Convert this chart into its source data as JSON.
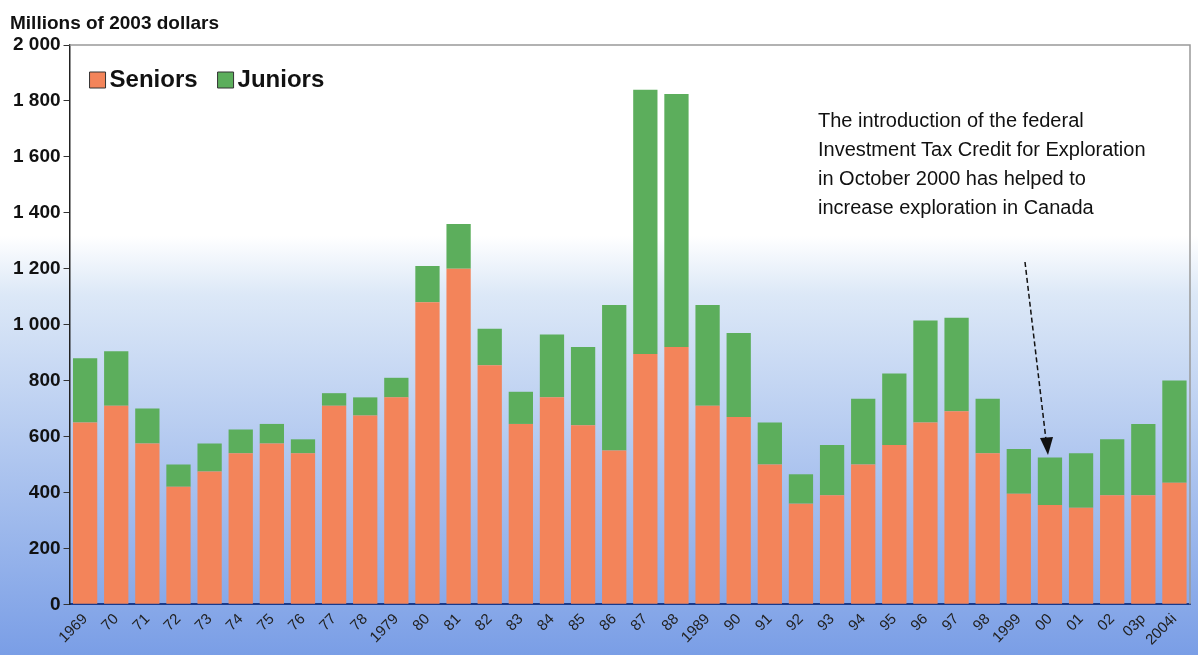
{
  "chart_data": {
    "type": "bar",
    "stacked": true,
    "ylabel": "Millions of 2003 dollars",
    "categories": [
      "1969",
      "70",
      "71",
      "72",
      "73",
      "74",
      "75",
      "76",
      "77",
      "78",
      "1979",
      "80",
      "81",
      "82",
      "83",
      "84",
      "85",
      "86",
      "87",
      "88",
      "1989",
      "90",
      "91",
      "92",
      "93",
      "94",
      "95",
      "96",
      "97",
      "98",
      "1999",
      "00",
      "01",
      "02",
      "03p",
      "2004i"
    ],
    "series": [
      {
        "name": "Seniors",
        "color": "#f3845a",
        "values": [
          650,
          710,
          575,
          420,
          475,
          540,
          575,
          540,
          710,
          675,
          740,
          1080,
          1200,
          855,
          645,
          740,
          640,
          550,
          895,
          920,
          710,
          670,
          500,
          360,
          390,
          500,
          570,
          650,
          690,
          540,
          395,
          355,
          345,
          390,
          390,
          435
        ]
      },
      {
        "name": "Juniors",
        "color": "#5cae5c",
        "values": [
          230,
          195,
          125,
          80,
          100,
          85,
          70,
          50,
          45,
          65,
          70,
          130,
          160,
          130,
          115,
          225,
          280,
          520,
          945,
          905,
          360,
          300,
          150,
          105,
          180,
          235,
          255,
          365,
          335,
          195,
          160,
          170,
          195,
          200,
          255,
          365
        ]
      }
    ],
    "ylim": [
      0,
      2000
    ],
    "yticks": [
      0,
      200,
      400,
      600,
      800,
      {
        "value": 1000,
        "label": "1 000"
      },
      {
        "value": 1200,
        "label": "1 200"
      },
      {
        "value": 1400,
        "label": "1 400"
      },
      {
        "value": 1600,
        "label": "1 600"
      },
      {
        "value": 1800,
        "label": "1 800"
      },
      {
        "value": 2000,
        "label": "2 000"
      }
    ],
    "grid": false,
    "legend": "top left",
    "annotations": [
      "The introduction of the federal Investment Tax Credit for Exploration in October 2000 has helped to increase exploration in Canada"
    ]
  }
}
